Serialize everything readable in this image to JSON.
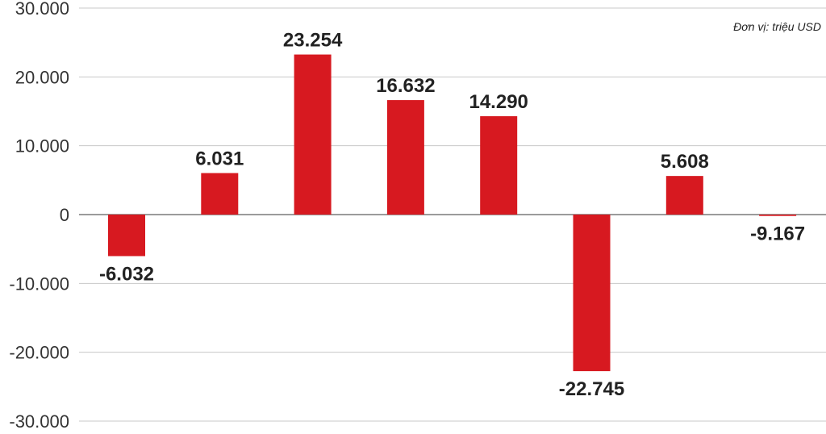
{
  "chart_data": {
    "type": "bar",
    "unit_note": "Đơn vị: triệu USD",
    "categories": [
      "",
      "",
      "",
      "",
      "",
      "",
      "",
      ""
    ],
    "values": [
      -6032,
      6031,
      23254,
      16632,
      14290,
      -22745,
      5608,
      -9167
    ],
    "value_labels": [
      "-6.032",
      "6.031",
      "23.254",
      "16.632",
      "14.290",
      "-22.745",
      "5.608",
      "-9.167"
    ],
    "ylim": [
      -30000,
      30000
    ],
    "yticks": [
      30000,
      20000,
      10000,
      0,
      -10000,
      -20000,
      -30000
    ],
    "ytick_labels": [
      "30.000",
      "20.000",
      "10.000",
      "0",
      "-10.000",
      "-20.000",
      "-30.000"
    ],
    "grid": true,
    "bar_color": "#d71920"
  }
}
